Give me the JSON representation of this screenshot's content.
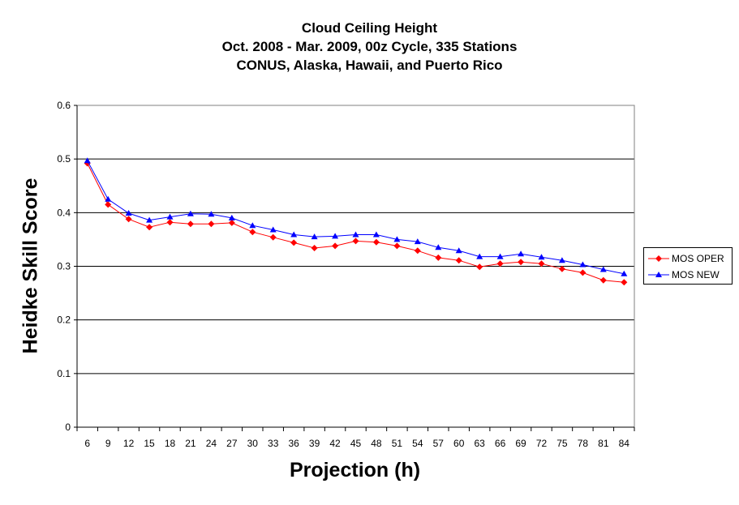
{
  "chart_data": {
    "type": "line",
    "title_lines": [
      "Cloud Ceiling Height",
      "Oct. 2008 - Mar. 2009, 00z Cycle, 335 Stations",
      "CONUS, Alaska, Hawaii, and Puerto Rico"
    ],
    "xlabel": "Projection (h)",
    "ylabel": "Heidke Skill Score",
    "categories": [
      "6",
      "9",
      "12",
      "15",
      "18",
      "21",
      "24",
      "27",
      "30",
      "33",
      "36",
      "39",
      "42",
      "45",
      "48",
      "51",
      "54",
      "57",
      "60",
      "63",
      "66",
      "69",
      "72",
      "75",
      "78",
      "81",
      "84"
    ],
    "ylim": [
      0,
      0.6
    ],
    "yticks": [
      "0",
      "0.1",
      "0.2",
      "0.3",
      "0.4",
      "0.5",
      "0.6"
    ],
    "grid": true,
    "legend_position": "right",
    "series": [
      {
        "name": "MOS OPER",
        "color": "#ff0000",
        "marker": "diamond",
        "values": [
          0.492,
          0.415,
          0.388,
          0.373,
          0.382,
          0.379,
          0.379,
          0.381,
          0.364,
          0.354,
          0.344,
          0.334,
          0.338,
          0.347,
          0.345,
          0.338,
          0.329,
          0.316,
          0.311,
          0.299,
          0.305,
          0.308,
          0.305,
          0.295,
          0.288,
          0.274,
          0.27
        ]
      },
      {
        "name": "MOS NEW",
        "color": "#0000ff",
        "marker": "triangle",
        "values": [
          0.497,
          0.425,
          0.399,
          0.386,
          0.392,
          0.398,
          0.397,
          0.39,
          0.376,
          0.368,
          0.359,
          0.355,
          0.356,
          0.359,
          0.359,
          0.35,
          0.346,
          0.335,
          0.329,
          0.318,
          0.318,
          0.323,
          0.317,
          0.311,
          0.303,
          0.294,
          0.286
        ]
      }
    ]
  }
}
